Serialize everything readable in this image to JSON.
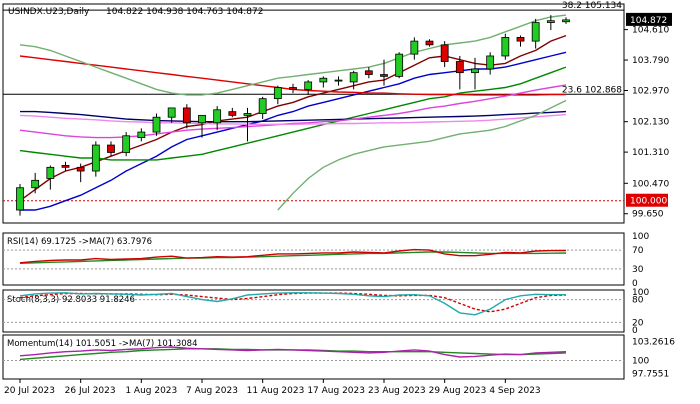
{
  "chart_data": {
    "type": "candlestick",
    "main": {
      "title": "USINDX.U23,Daily",
      "ohlc_readout": "104.822 104.938 104.763 104.872",
      "price_axis_ticks": [
        "104.610",
        "103.790",
        "102.970",
        "102.130",
        "101.310",
        "100.470",
        "99.650"
      ],
      "ylim": [
        99.4,
        105.3
      ],
      "current_price": "104.872",
      "levels": [
        {
          "label": "38.2 105.134",
          "value": 105.134,
          "color": "#000000"
        },
        {
          "label": "23.6 102.868",
          "value": 102.868,
          "color": "#000000"
        }
      ],
      "red_level": {
        "label": "100.000",
        "value": 100.0,
        "color": "#dd0000"
      },
      "candles": [
        {
          "d": "2023-07-20",
          "o": 99.75,
          "h": 100.45,
          "l": 99.6,
          "c": 100.35
        },
        {
          "d": "2023-07-21",
          "o": 100.35,
          "h": 100.75,
          "l": 100.2,
          "c": 100.55
        },
        {
          "d": "2023-07-24",
          "o": 100.6,
          "h": 100.95,
          "l": 100.3,
          "c": 100.9
        },
        {
          "d": "2023-07-25",
          "o": 100.95,
          "h": 101.05,
          "l": 100.8,
          "c": 100.9
        },
        {
          "d": "2023-07-26",
          "o": 100.9,
          "h": 101.0,
          "l": 100.5,
          "c": 100.8
        },
        {
          "d": "2023-07-27",
          "o": 100.8,
          "h": 101.6,
          "l": 100.65,
          "c": 101.5
        },
        {
          "d": "2023-07-28",
          "o": 101.5,
          "h": 101.6,
          "l": 101.2,
          "c": 101.3
        },
        {
          "d": "2023-07-31",
          "o": 101.3,
          "h": 101.85,
          "l": 101.2,
          "c": 101.75
        },
        {
          "d": "2023-08-01",
          "o": 101.7,
          "h": 101.95,
          "l": 101.6,
          "c": 101.85
        },
        {
          "d": "2023-08-02",
          "o": 101.85,
          "h": 102.35,
          "l": 101.75,
          "c": 102.25
        },
        {
          "d": "2023-08-03",
          "o": 102.25,
          "h": 102.5,
          "l": 102.1,
          "c": 102.5
        },
        {
          "d": "2023-08-04",
          "o": 102.5,
          "h": 102.6,
          "l": 101.95,
          "c": 102.1
        },
        {
          "d": "2023-08-07",
          "o": 102.1,
          "h": 102.25,
          "l": 101.7,
          "c": 102.3
        },
        {
          "d": "2023-08-08",
          "o": 102.1,
          "h": 102.55,
          "l": 101.9,
          "c": 102.45
        },
        {
          "d": "2023-08-09",
          "o": 102.4,
          "h": 102.5,
          "l": 102.25,
          "c": 102.3
        },
        {
          "d": "2023-08-10",
          "o": 102.3,
          "h": 102.5,
          "l": 101.6,
          "c": 102.35
        },
        {
          "d": "2023-08-11",
          "o": 102.35,
          "h": 102.8,
          "l": 102.2,
          "c": 102.75
        },
        {
          "d": "2023-08-14",
          "o": 102.75,
          "h": 103.1,
          "l": 102.6,
          "c": 103.05
        },
        {
          "d": "2023-08-15",
          "o": 103.05,
          "h": 103.15,
          "l": 102.9,
          "c": 103.0
        },
        {
          "d": "2023-08-16",
          "o": 103.0,
          "h": 103.25,
          "l": 102.85,
          "c": 103.2
        },
        {
          "d": "2023-08-17",
          "o": 103.2,
          "h": 103.35,
          "l": 103.05,
          "c": 103.3
        },
        {
          "d": "2023-08-18",
          "o": 103.25,
          "h": 103.35,
          "l": 103.1,
          "c": 103.25
        },
        {
          "d": "2023-08-21",
          "o": 103.2,
          "h": 103.5,
          "l": 103.0,
          "c": 103.45
        },
        {
          "d": "2023-08-22",
          "o": 103.5,
          "h": 103.6,
          "l": 103.3,
          "c": 103.4
        },
        {
          "d": "2023-08-23",
          "o": 103.4,
          "h": 103.8,
          "l": 103.1,
          "c": 103.35
        },
        {
          "d": "2023-08-24",
          "o": 103.35,
          "h": 104.0,
          "l": 103.3,
          "c": 103.95
        },
        {
          "d": "2023-08-25",
          "o": 103.95,
          "h": 104.4,
          "l": 103.8,
          "c": 104.3
        },
        {
          "d": "2023-08-28",
          "o": 104.3,
          "h": 104.35,
          "l": 104.15,
          "c": 104.2
        },
        {
          "d": "2023-08-29",
          "o": 104.2,
          "h": 104.3,
          "l": 103.6,
          "c": 103.75
        },
        {
          "d": "2023-08-30",
          "o": 103.75,
          "h": 103.9,
          "l": 103.0,
          "c": 103.45
        },
        {
          "d": "2023-08-31",
          "o": 103.45,
          "h": 103.85,
          "l": 103.0,
          "c": 103.55
        },
        {
          "d": "2023-09-01",
          "o": 103.55,
          "h": 104.0,
          "l": 103.4,
          "c": 103.9
        },
        {
          "d": "2023-09-04",
          "o": 103.9,
          "h": 104.5,
          "l": 103.8,
          "c": 104.4
        },
        {
          "d": "2023-09-05",
          "o": 104.4,
          "h": 104.45,
          "l": 104.15,
          "c": 104.3
        },
        {
          "d": "2023-09-06",
          "o": 104.3,
          "h": 104.9,
          "l": 104.1,
          "c": 104.8
        },
        {
          "d": "2023-09-07",
          "o": 104.8,
          "h": 105.0,
          "l": 104.6,
          "c": 104.85
        },
        {
          "d": "2023-09-08",
          "o": 104.822,
          "h": 104.938,
          "l": 104.763,
          "c": 104.872
        }
      ],
      "lines": [
        {
          "color": "#800000",
          "values": [
            100.0,
            100.3,
            100.6,
            100.8,
            100.9,
            101.05,
            101.2,
            101.35,
            101.5,
            101.65,
            101.85,
            102.0,
            102.05,
            102.15,
            102.2,
            102.25,
            102.4,
            102.55,
            102.65,
            102.8,
            102.9,
            103.0,
            103.1,
            103.2,
            103.25,
            103.45,
            103.65,
            103.85,
            103.9,
            103.8,
            103.7,
            103.65,
            103.7,
            103.9,
            104.05,
            104.3,
            104.45
          ]
        },
        {
          "color": "#0000cc",
          "values": [
            99.75,
            99.75,
            99.85,
            100.0,
            100.15,
            100.35,
            100.55,
            100.8,
            101.0,
            101.2,
            101.45,
            101.65,
            101.75,
            101.85,
            101.95,
            102.05,
            102.15,
            102.3,
            102.4,
            102.55,
            102.65,
            102.75,
            102.85,
            102.95,
            103.05,
            103.15,
            103.3,
            103.4,
            103.45,
            103.5,
            103.55,
            103.55,
            103.6,
            103.7,
            103.8,
            103.9,
            104.0
          ]
        },
        {
          "color": "#008800",
          "values": [
            101.35,
            101.3,
            101.25,
            101.2,
            101.15,
            101.15,
            101.1,
            101.1,
            101.1,
            101.1,
            101.15,
            101.2,
            101.25,
            101.35,
            101.45,
            101.55,
            101.65,
            101.75,
            101.85,
            101.95,
            102.05,
            102.15,
            102.25,
            102.35,
            102.45,
            102.55,
            102.65,
            102.75,
            102.8,
            102.9,
            102.95,
            103.0,
            103.05,
            103.15,
            103.3,
            103.45,
            103.6
          ]
        },
        {
          "color": "#dd0000",
          "values": [
            103.9,
            103.85,
            103.8,
            103.75,
            103.7,
            103.65,
            103.6,
            103.55,
            103.5,
            103.45,
            103.4,
            103.35,
            103.3,
            103.25,
            103.2,
            103.15,
            103.1,
            103.05,
            103.0,
            102.97,
            102.95,
            102.93,
            102.92,
            102.9,
            102.9,
            102.88,
            102.87,
            102.86,
            102.86,
            102.86,
            102.85,
            102.85,
            102.85,
            102.85,
            102.85,
            102.86,
            102.86
          ]
        },
        {
          "color": "#000066",
          "values": [
            102.4,
            102.4,
            102.38,
            102.35,
            102.32,
            102.28,
            102.24,
            102.2,
            102.18,
            102.16,
            102.15,
            102.14,
            102.13,
            102.13,
            102.13,
            102.13,
            102.14,
            102.15,
            102.16,
            102.17,
            102.18,
            102.19,
            102.2,
            102.21,
            102.22,
            102.23,
            102.24,
            102.25,
            102.26,
            102.27,
            102.28,
            102.3,
            102.32,
            102.34,
            102.36,
            102.38,
            102.4
          ]
        },
        {
          "color": "#dd44dd",
          "values": [
            101.9,
            101.85,
            101.8,
            101.75,
            101.72,
            101.7,
            101.7,
            101.72,
            101.75,
            101.8,
            101.85,
            101.9,
            101.93,
            101.95,
            101.97,
            102.0,
            102.02,
            102.05,
            102.08,
            102.1,
            102.13,
            102.15,
            102.2,
            102.25,
            102.3,
            102.35,
            102.42,
            102.5,
            102.55,
            102.62,
            102.68,
            102.75,
            102.82,
            102.9,
            102.98,
            103.05,
            103.12
          ]
        },
        {
          "color": "#ee88ee",
          "values": [
            102.3,
            102.28,
            102.25,
            102.22,
            102.2,
            102.18,
            102.15,
            102.13,
            102.12,
            102.1,
            102.1,
            102.09,
            102.08,
            102.07,
            102.07,
            102.06,
            102.06,
            102.06,
            102.06,
            102.07,
            102.07,
            102.08,
            102.08,
            102.09,
            102.1,
            102.1,
            102.11,
            102.12,
            102.13,
            102.14,
            102.15,
            102.17,
            102.2,
            102.23,
            102.26,
            102.29,
            102.32
          ]
        },
        {
          "color": "#70b070",
          "values": [
            104.2,
            104.15,
            104.05,
            103.9,
            103.75,
            103.6,
            103.45,
            103.3,
            103.15,
            103.0,
            102.9,
            102.85,
            102.85,
            102.9,
            103.0,
            103.1,
            103.2,
            103.3,
            103.35,
            103.4,
            103.45,
            103.5,
            103.55,
            103.6,
            103.7,
            103.85,
            104.0,
            104.1,
            104.2,
            104.25,
            104.3,
            104.4,
            104.55,
            104.7,
            104.85,
            104.95,
            105.0
          ]
        },
        {
          "color": "#70b070",
          "values": [
            null,
            null,
            null,
            null,
            null,
            null,
            null,
            null,
            null,
            null,
            null,
            null,
            null,
            null,
            null,
            null,
            null,
            99.75,
            100.2,
            100.6,
            100.9,
            101.1,
            101.25,
            101.35,
            101.45,
            101.5,
            101.55,
            101.6,
            101.7,
            101.8,
            101.85,
            101.9,
            102.0,
            102.15,
            102.3,
            102.5,
            102.7
          ]
        }
      ]
    },
    "rsi": {
      "label": "RSI(14) 69.1725 ->MA(7) 63.7976",
      "ticks": [
        "100",
        "70",
        "30",
        "0"
      ],
      "ylim": [
        0,
        100
      ],
      "levels": [
        70,
        30
      ],
      "rsi": [
        43,
        46,
        48,
        49,
        49,
        52,
        50,
        51,
        52,
        55,
        57,
        53,
        54,
        56,
        55,
        56,
        59,
        62,
        62,
        63,
        64,
        64,
        66,
        65,
        64,
        68,
        71,
        70,
        62,
        58,
        58,
        61,
        65,
        64,
        68,
        69,
        69.2
      ],
      "ma": [
        42,
        43,
        44,
        45,
        46,
        47,
        48,
        49,
        50,
        51,
        52,
        53,
        53,
        54,
        54,
        55,
        56,
        57,
        58,
        59,
        60,
        61,
        62,
        63,
        63,
        64,
        65,
        66,
        66,
        65,
        64,
        63,
        63,
        63,
        63,
        63.5,
        63.8
      ]
    },
    "stoch": {
      "label": "Stoch(8,3,3) 92.8033 91.8246",
      "ticks": [
        "100",
        "80",
        "20",
        "0"
      ],
      "ylim": [
        0,
        100
      ],
      "levels": [
        80,
        20
      ],
      "k": [
        90,
        95,
        97,
        98,
        95,
        96,
        95,
        94,
        92,
        94,
        96,
        88,
        80,
        75,
        82,
        92,
        95,
        97,
        98,
        98,
        97,
        96,
        94,
        90,
        88,
        92,
        93,
        90,
        70,
        45,
        40,
        55,
        80,
        90,
        94,
        93,
        92.8
      ],
      "d": [
        85,
        90,
        93,
        96,
        96,
        95,
        95,
        95,
        94,
        93,
        94,
        92,
        88,
        84,
        80,
        83,
        88,
        93,
        96,
        97,
        97,
        97,
        96,
        94,
        91,
        90,
        91,
        91,
        85,
        70,
        55,
        48,
        55,
        70,
        85,
        91,
        91.8
      ]
    },
    "momentum": {
      "label": "Momentum(14) 101.5051 ->MA(7) 101.3084",
      "ticks": [
        "103.2616",
        "100",
        "97.7551"
      ],
      "ylim": [
        97.2,
        104.0
      ],
      "mom": [
        100.8,
        101.0,
        101.3,
        101.5,
        101.6,
        101.8,
        101.7,
        101.9,
        102.0,
        102.2,
        102.3,
        102.1,
        102.0,
        101.9,
        101.8,
        101.7,
        101.8,
        101.9,
        101.8,
        101.7,
        101.6,
        101.5,
        101.4,
        101.3,
        101.4,
        101.6,
        101.8,
        101.6,
        101.0,
        100.6,
        100.7,
        100.9,
        101.1,
        101.0,
        101.3,
        101.4,
        101.5
      ],
      "ma": [
        100.2,
        100.4,
        100.6,
        100.8,
        101.0,
        101.2,
        101.4,
        101.5,
        101.7,
        101.8,
        101.9,
        102.0,
        102.0,
        102.0,
        101.9,
        101.9,
        101.8,
        101.8,
        101.8,
        101.8,
        101.7,
        101.6,
        101.6,
        101.5,
        101.5,
        101.5,
        101.5,
        101.5,
        101.4,
        101.3,
        101.2,
        101.1,
        101.0,
        101.0,
        101.1,
        101.2,
        101.3
      ]
    },
    "x_ticks": [
      {
        "label": "20 Jul 2023",
        "index": 0
      },
      {
        "label": "26 Jul 2023",
        "index": 4
      },
      {
        "label": "1 Aug 2023",
        "index": 8
      },
      {
        "label": "7 Aug 2023",
        "index": 12
      },
      {
        "label": "11 Aug 2023",
        "index": 16
      },
      {
        "label": "17 Aug 2023",
        "index": 20
      },
      {
        "label": "23 Aug 2023",
        "index": 24
      },
      {
        "label": "29 Aug 2023",
        "index": 28
      },
      {
        "label": "4 Sep 2023",
        "index": 32
      }
    ],
    "colors": {
      "bull": "#22cc22",
      "bear": "#dd0000",
      "wick": "#000000",
      "rsi": "#cc0000",
      "rsi_ma": "#228822",
      "stoch_k": "#22aaaa",
      "stoch_d": "#cc0000",
      "mom": "#aa22aa",
      "mom_ma": "#228822"
    }
  }
}
